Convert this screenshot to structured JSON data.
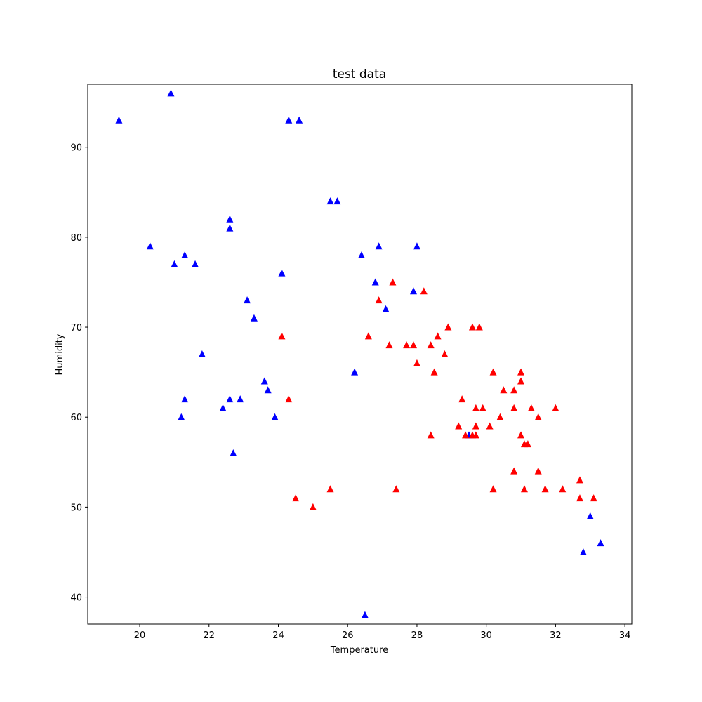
{
  "chart_data": {
    "type": "scatter",
    "title": "test data",
    "xlabel": "Temperature",
    "ylabel": "Humidity",
    "xlim": [
      18.5,
      34.2
    ],
    "ylim": [
      37,
      97
    ],
    "xticks": [
      20,
      22,
      24,
      26,
      28,
      30,
      32,
      34
    ],
    "yticks": [
      40,
      50,
      60,
      70,
      80,
      90
    ],
    "grid": false,
    "marker": "triangle-up",
    "series": [
      {
        "color": "#0000ff",
        "points": [
          [
            19.4,
            93
          ],
          [
            20.9,
            96
          ],
          [
            24.3,
            93
          ],
          [
            24.6,
            93
          ],
          [
            25.5,
            84
          ],
          [
            25.7,
            84
          ],
          [
            22.6,
            82
          ],
          [
            22.6,
            81
          ],
          [
            20.3,
            79
          ],
          [
            21.3,
            78
          ],
          [
            21.0,
            77
          ],
          [
            21.6,
            77
          ],
          [
            26.9,
            79
          ],
          [
            28.0,
            79
          ],
          [
            26.4,
            78
          ],
          [
            24.1,
            76
          ],
          [
            26.8,
            75
          ],
          [
            27.9,
            74
          ],
          [
            23.1,
            73
          ],
          [
            27.1,
            72
          ],
          [
            23.3,
            71
          ],
          [
            21.8,
            67
          ],
          [
            26.2,
            65
          ],
          [
            23.6,
            64
          ],
          [
            23.7,
            63
          ],
          [
            21.3,
            62
          ],
          [
            22.6,
            62
          ],
          [
            22.9,
            62
          ],
          [
            22.4,
            61
          ],
          [
            21.2,
            60
          ],
          [
            23.9,
            60
          ],
          [
            22.7,
            56
          ],
          [
            29.5,
            58
          ],
          [
            33.0,
            49
          ],
          [
            33.3,
            46
          ],
          [
            32.8,
            45
          ],
          [
            26.5,
            38
          ]
        ]
      },
      {
        "color": "#ff0000",
        "points": [
          [
            27.3,
            75
          ],
          [
            28.2,
            74
          ],
          [
            26.9,
            73
          ],
          [
            28.9,
            70
          ],
          [
            29.6,
            70
          ],
          [
            29.8,
            70
          ],
          [
            24.1,
            69
          ],
          [
            26.6,
            69
          ],
          [
            28.6,
            69
          ],
          [
            27.2,
            68
          ],
          [
            27.7,
            68
          ],
          [
            27.9,
            68
          ],
          [
            28.4,
            68
          ],
          [
            28.8,
            67
          ],
          [
            28.0,
            66
          ],
          [
            28.5,
            65
          ],
          [
            30.2,
            65
          ],
          [
            31.0,
            65
          ],
          [
            31.0,
            64
          ],
          [
            30.5,
            63
          ],
          [
            30.8,
            63
          ],
          [
            24.3,
            62
          ],
          [
            29.3,
            62
          ],
          [
            29.7,
            61
          ],
          [
            29.9,
            61
          ],
          [
            30.8,
            61
          ],
          [
            31.3,
            61
          ],
          [
            32.0,
            61
          ],
          [
            30.4,
            60
          ],
          [
            31.5,
            60
          ],
          [
            29.2,
            59
          ],
          [
            29.7,
            59
          ],
          [
            30.1,
            59
          ],
          [
            28.4,
            58
          ],
          [
            29.4,
            58
          ],
          [
            29.6,
            58
          ],
          [
            29.7,
            58
          ],
          [
            31.0,
            58
          ],
          [
            31.1,
            57
          ],
          [
            31.2,
            57
          ],
          [
            30.8,
            54
          ],
          [
            31.5,
            54
          ],
          [
            32.7,
            53
          ],
          [
            25.5,
            52
          ],
          [
            27.4,
            52
          ],
          [
            30.2,
            52
          ],
          [
            31.1,
            52
          ],
          [
            31.7,
            52
          ],
          [
            32.2,
            52
          ],
          [
            24.5,
            51
          ],
          [
            32.7,
            51
          ],
          [
            33.1,
            51
          ],
          [
            25.0,
            50
          ]
        ]
      }
    ]
  }
}
